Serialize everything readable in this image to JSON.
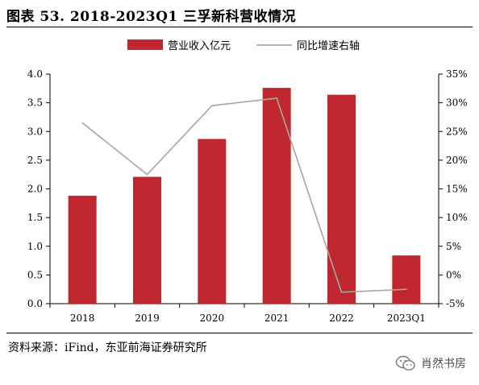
{
  "title": "图表 53. 2018-2023Q1 三孚新科营收情况",
  "source": "资料来源：iFind，东亚前海证券研究所",
  "watermark": {
    "text": "肖然书房",
    "icon": "wechat-icon"
  },
  "chart_data": {
    "type": "bar",
    "categories": [
      "2018",
      "2019",
      "2020",
      "2021",
      "2022",
      "2023Q1"
    ],
    "series": [
      {
        "name": "营业收入亿元",
        "type": "bar",
        "axis": "left",
        "color": "#c0262d",
        "values": [
          1.88,
          2.21,
          2.87,
          3.76,
          3.64,
          0.84
        ]
      },
      {
        "name": "同比增速右轴",
        "type": "line",
        "axis": "right",
        "color": "#a6a6a6",
        "values": [
          26.5,
          17.5,
          29.5,
          30.8,
          -3.0,
          -2.5
        ]
      }
    ],
    "y_left": {
      "min": 0,
      "max": 4,
      "ticks": [
        "0.0",
        "0.5",
        "1.0",
        "1.5",
        "2.0",
        "2.5",
        "3.0",
        "3.5",
        "4.0"
      ]
    },
    "y_right": {
      "min": -5,
      "max": 35,
      "ticks": [
        "-5%",
        "0%",
        "5%",
        "10%",
        "15%",
        "20%",
        "25%",
        "30%",
        "35%"
      ]
    },
    "legend_position": "top",
    "grid": false
  }
}
